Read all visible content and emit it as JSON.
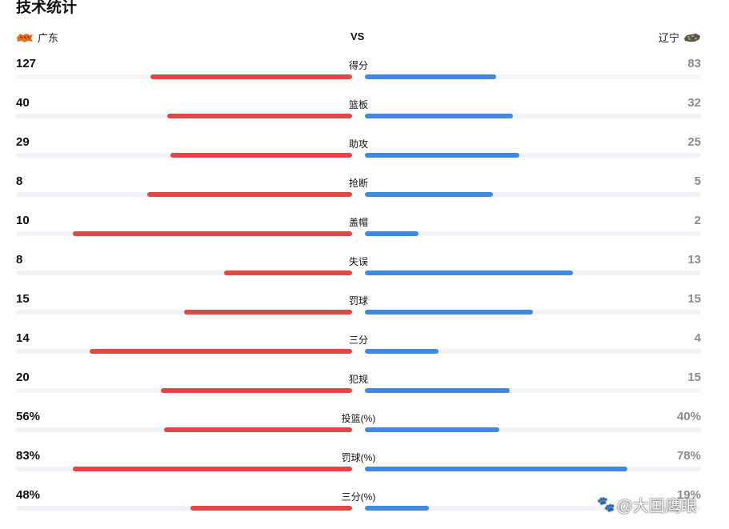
{
  "title": "技术统计",
  "teams": {
    "home": {
      "name": "广东",
      "logo_icon": "tiger-logo-icon"
    },
    "away": {
      "name": "辽宁",
      "logo_icon": "leopard-logo-icon"
    },
    "vs": "VS"
  },
  "colors": {
    "home_bar": "#e04848",
    "away_bar": "#3f8ae0",
    "track": "#f2f3f7"
  },
  "stats": [
    {
      "label": "得分",
      "home": "127",
      "away": "83",
      "home_fill": 0.6,
      "away_fill": 0.39
    },
    {
      "label": "篮板",
      "home": "40",
      "away": "32",
      "home_fill": 0.55,
      "away_fill": 0.44
    },
    {
      "label": "助攻",
      "home": "29",
      "away": "25",
      "home_fill": 0.54,
      "away_fill": 0.46
    },
    {
      "label": "抢断",
      "home": "8",
      "away": "5",
      "home_fill": 0.61,
      "away_fill": 0.38
    },
    {
      "label": "盖帽",
      "home": "10",
      "away": "2",
      "home_fill": 0.83,
      "away_fill": 0.16
    },
    {
      "label": "失误",
      "home": "8",
      "away": "13",
      "home_fill": 0.38,
      "away_fill": 0.62
    },
    {
      "label": "罚球",
      "home": "15",
      "away": "15",
      "home_fill": 0.5,
      "away_fill": 0.5
    },
    {
      "label": "三分",
      "home": "14",
      "away": "4",
      "home_fill": 0.78,
      "away_fill": 0.22
    },
    {
      "label": "犯规",
      "home": "20",
      "away": "15",
      "home_fill": 0.57,
      "away_fill": 0.43
    },
    {
      "label": "投篮(%)",
      "home": "56%",
      "away": "40%",
      "home_fill": 0.56,
      "away_fill": 0.4
    },
    {
      "label": "罚球(%)",
      "home": "83%",
      "away": "78%",
      "home_fill": 0.83,
      "away_fill": 0.78
    },
    {
      "label": "三分(%)",
      "home": "48%",
      "away": "19%",
      "home_fill": 0.48,
      "away_fill": 0.19
    }
  ],
  "watermark": {
    "icon": "paw-icon",
    "text": "@大国鹰眼"
  }
}
